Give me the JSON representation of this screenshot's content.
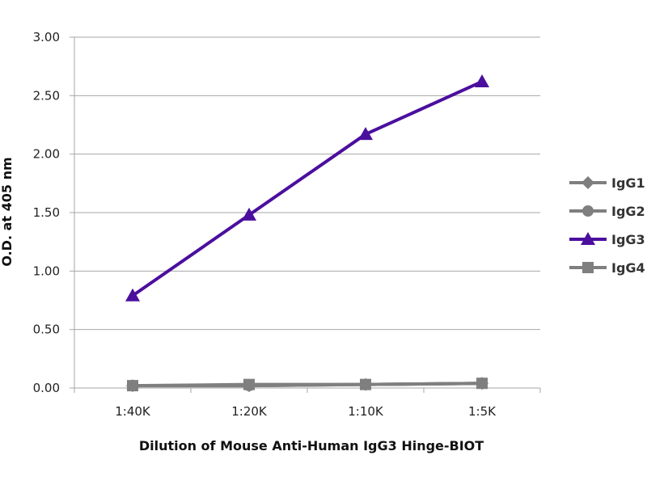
{
  "chart_data": {
    "type": "line",
    "title": "",
    "xlabel": "Dilution of Mouse Anti-Human IgG3 Hinge-BIOT",
    "ylabel": "O.D. at 405 nm",
    "categories": [
      "1:40K",
      "1:20K",
      "1:10K",
      "1:5K"
    ],
    "ylim": [
      0,
      3
    ],
    "yticks": [
      "0.00",
      "0.50",
      "1.00",
      "1.50",
      "2.00",
      "2.50",
      "3.00"
    ],
    "grid": true,
    "legend_position": "right",
    "series": [
      {
        "name": "IgG1",
        "marker": "diamond",
        "color": "#7f7f7f",
        "values": [
          0.02,
          0.02,
          0.03,
          0.04
        ]
      },
      {
        "name": "IgG2",
        "marker": "circle",
        "color": "#7f7f7f",
        "values": [
          0.02,
          0.02,
          0.03,
          0.04
        ]
      },
      {
        "name": "IgG3",
        "marker": "triangle",
        "color": "#4b0f9e",
        "values": [
          0.79,
          1.48,
          2.17,
          2.62
        ]
      },
      {
        "name": "IgG4",
        "marker": "square",
        "color": "#7f7f7f",
        "values": [
          0.02,
          0.03,
          0.03,
          0.04
        ]
      }
    ]
  }
}
